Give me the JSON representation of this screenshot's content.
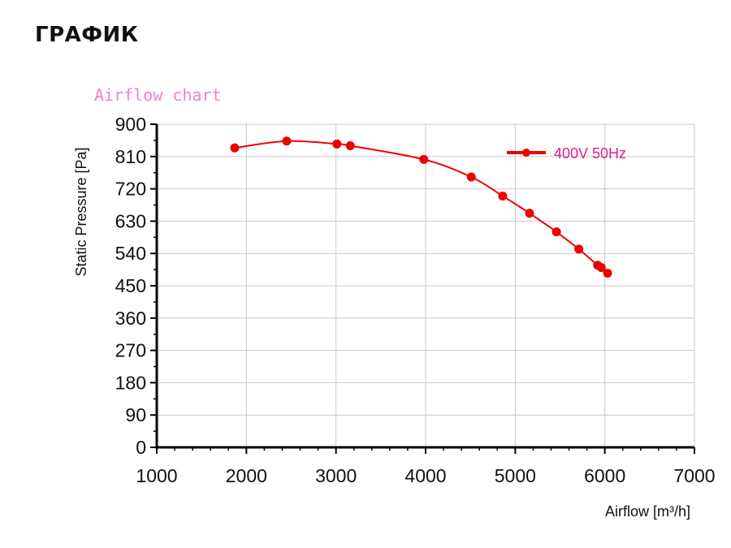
{
  "page": {
    "heading": "ГРАФИК"
  },
  "colors": {
    "series": "#ee0000",
    "title": "#f080d0",
    "legend_text": "#e0208a",
    "grid": "#c8c8c8",
    "axis": "#000000"
  },
  "chart_data": {
    "type": "line",
    "title": "Airflow chart",
    "xlabel": "Airflow [m³/h]",
    "ylabel": "Static Pressure [Pa]",
    "xlim": [
      1000,
      7000
    ],
    "ylim": [
      0,
      900
    ],
    "x_ticks": [
      1000,
      2000,
      3000,
      4000,
      5000,
      6000,
      7000
    ],
    "y_ticks": [
      0,
      90,
      180,
      270,
      360,
      450,
      540,
      630,
      720,
      810,
      900
    ],
    "grid": true,
    "legend_position": "top-right",
    "series": [
      {
        "name": "400V 50Hz",
        "x": [
          1870,
          2450,
          3010,
          3160,
          3980,
          4510,
          4860,
          5160,
          5460,
          5710,
          5920,
          5960,
          6030
        ],
        "y": [
          834,
          853,
          845,
          840,
          802,
          753,
          700,
          652,
          600,
          552,
          507,
          501,
          485
        ]
      }
    ]
  }
}
